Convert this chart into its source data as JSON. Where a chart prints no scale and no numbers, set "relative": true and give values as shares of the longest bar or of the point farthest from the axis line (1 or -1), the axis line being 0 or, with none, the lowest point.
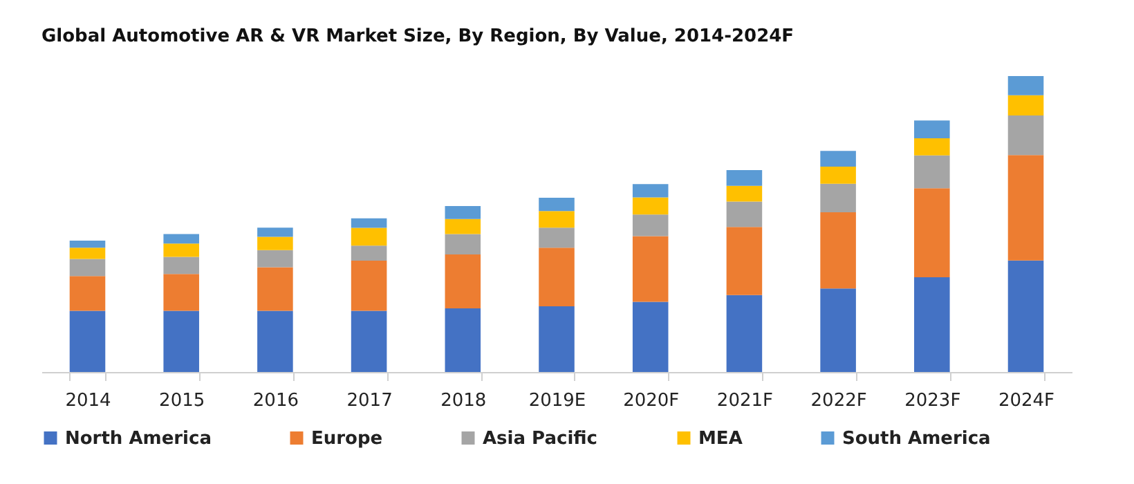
{
  "chart_data": {
    "type": "bar",
    "title": "Global Automotive AR & VR Market Size, By Region, By Value, 2014-2024F",
    "categories": [
      "2014",
      "2015",
      "2016",
      "2017",
      "2018",
      "2019E",
      "2020F",
      "2021F",
      "2022F",
      "2023F",
      "2024F"
    ],
    "stacked": true,
    "relative": true,
    "legend": "bottom",
    "series": [
      {
        "name": "North America",
        "color": "#4472c4",
        "values": [
          0.207,
          0.207,
          0.207,
          0.207,
          0.215,
          0.222,
          0.237,
          0.26,
          0.282,
          0.32,
          0.377
        ]
      },
      {
        "name": "Europe",
        "color": "#ed7d31",
        "values": [
          0.117,
          0.124,
          0.147,
          0.169,
          0.182,
          0.198,
          0.222,
          0.23,
          0.258,
          0.301,
          0.356
        ]
      },
      {
        "name": "Asia Pacific",
        "color": "#a5a5a5",
        "values": [
          0.058,
          0.058,
          0.058,
          0.051,
          0.069,
          0.068,
          0.073,
          0.086,
          0.096,
          0.111,
          0.134
        ]
      },
      {
        "name": "MEA",
        "color": "#ffc000",
        "values": [
          0.038,
          0.045,
          0.045,
          0.06,
          0.051,
          0.056,
          0.058,
          0.053,
          0.058,
          0.058,
          0.068
        ]
      },
      {
        "name": "South America",
        "color": "#5b9bd5",
        "values": [
          0.024,
          0.032,
          0.031,
          0.032,
          0.044,
          0.045,
          0.045,
          0.053,
          0.053,
          0.06,
          0.065
        ]
      }
    ]
  }
}
